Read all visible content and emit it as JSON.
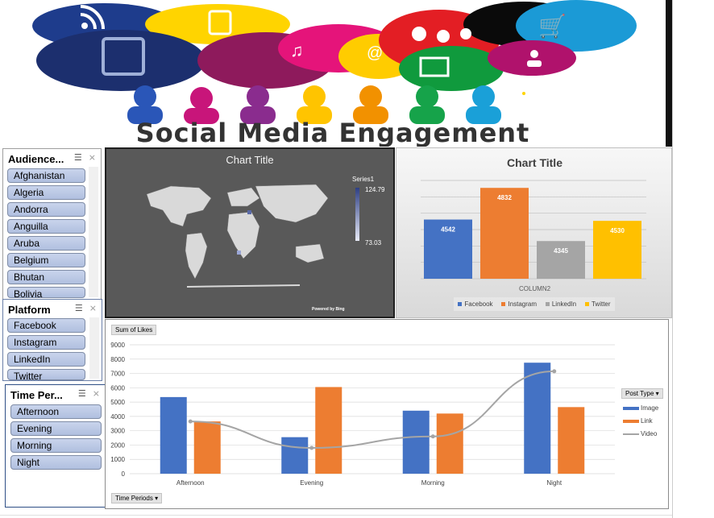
{
  "banner": {
    "title": "Social Media Engagement"
  },
  "slicers": {
    "audience": {
      "title": "Audience...",
      "items": [
        "Afghanistan",
        "Algeria",
        "Andorra",
        "Anguilla",
        "Aruba",
        "Belgium",
        "Bhutan",
        "Bolivia"
      ]
    },
    "platform": {
      "title": "Platform",
      "items": [
        "Facebook",
        "Instagram",
        "LinkedIn",
        "Twitter"
      ]
    },
    "time_period": {
      "title": "Time Per...",
      "items": [
        "Afternoon",
        "Evening",
        "Morning",
        "Night"
      ]
    }
  },
  "map_chart": {
    "title": "Chart Title",
    "legend_series": "Series1",
    "legend_max": "124.79",
    "legend_min": "73.03",
    "powered_by": "Powered by Bing"
  },
  "chart_data": [
    {
      "type": "bar",
      "title": "Chart Title",
      "categories": [
        "Facebook",
        "Instagram",
        "LinkedIn",
        "Twitter"
      ],
      "values": [
        4542,
        4832,
        4345,
        4530
      ],
      "value_labels": [
        "4542",
        "4832",
        "4345",
        "4530"
      ],
      "xlabel": "COLUMN2",
      "ylim": [
        4000,
        4900
      ],
      "grid": true,
      "legend": "bottom",
      "colors": [
        "#4472c4",
        "#ed7d31",
        "#a5a5a5",
        "#ffc000"
      ]
    },
    {
      "type": "bar",
      "title": "",
      "field_button": "Sum of Likes",
      "legend_title": "Post Type",
      "axis_button": "Time Periods",
      "categories": [
        "Afternoon",
        "Evening",
        "Morning",
        "Night"
      ],
      "yticks": [
        "9000",
        "8000",
        "7000",
        "6000",
        "5000",
        "4000",
        "3000",
        "2000",
        "1000",
        "0"
      ],
      "ylim": [
        0,
        9000
      ],
      "series": [
        {
          "name": "Image",
          "type": "bar",
          "color": "#4472c4",
          "values": [
            5350,
            2550,
            4400,
            7750
          ]
        },
        {
          "name": "Link",
          "type": "bar",
          "color": "#ed7d31",
          "values": [
            3650,
            6050,
            4200,
            4650
          ]
        },
        {
          "name": "Video",
          "type": "line",
          "color": "#a5a5a5",
          "values": [
            3650,
            1800,
            2600,
            7150
          ]
        }
      ]
    }
  ]
}
